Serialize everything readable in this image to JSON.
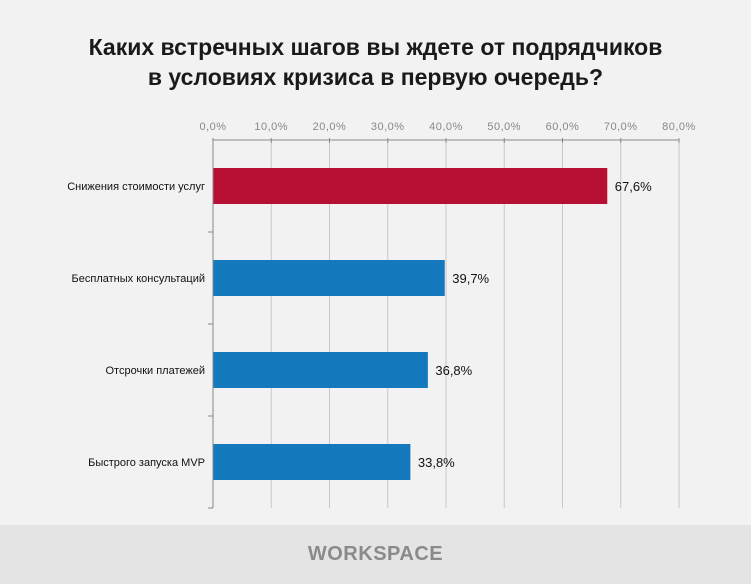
{
  "chart_data": {
    "type": "bar",
    "orientation": "horizontal",
    "title_line1": "Каких встречных шагов вы ждете от подрядчиков",
    "title_line2": "в условиях кризиса в первую очередь?",
    "categories": [
      "Снижения  стоимости  услуг",
      "Бесплатных  консультаций",
      "Отсрочки  платежей",
      "Быстрого  запуска  MVP"
    ],
    "values": [
      67.6,
      39.7,
      36.8,
      33.8
    ],
    "data_labels": [
      "67,6%",
      "39,7%",
      "36,8%",
      "33,8%"
    ],
    "bar_colors": [
      "#b80f35",
      "#1478bd",
      "#1478bd",
      "#1478bd"
    ],
    "xlim": [
      0,
      80
    ],
    "x_ticks": [
      "0,0%",
      "10,0%",
      "20,0%",
      "30,0%",
      "40,0%",
      "50,0%",
      "60,0%",
      "70,0%",
      "80,0%"
    ],
    "x_axis_position": "top",
    "grid": true
  },
  "footer": {
    "logo": "WORKSPACE"
  }
}
